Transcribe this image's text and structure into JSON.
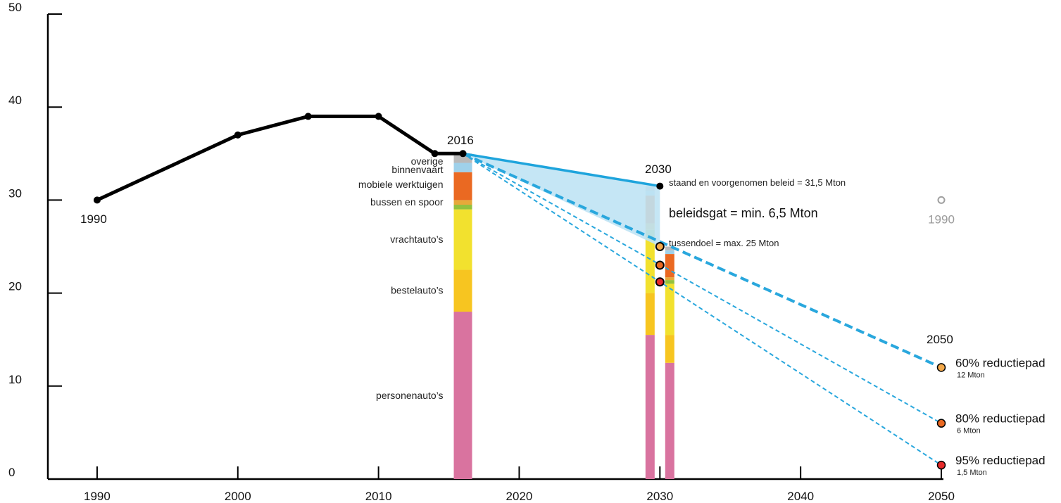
{
  "chart_data": {
    "type": "line",
    "y_ticks": [
      "0",
      "10",
      "20",
      "30",
      "40",
      "50"
    ],
    "x_ticks": [
      "1990",
      "2000",
      "2010",
      "2020",
      "2030",
      "2040",
      "2050"
    ],
    "xlim": [
      1986.5,
      2050
    ],
    "ylim": [
      0,
      50
    ],
    "historical": {
      "x": [
        1990,
        2000,
        2005,
        2010,
        2014,
        2016
      ],
      "y": [
        30,
        37,
        39,
        39,
        35,
        35
      ],
      "color": "#000000"
    },
    "stacked_bars": [
      {
        "x": 2016,
        "segments": [
          {
            "label": "personenauto’s",
            "value": 18,
            "color": "#d9739f"
          },
          {
            "label": "bestelauto’s",
            "value": 4.5,
            "color": "#f7c520"
          },
          {
            "label": "vrachtauto’s",
            "value": 6.5,
            "color": "#f2e12e"
          },
          {
            "label": "bussen en spoor",
            "value": 0.5,
            "color": "#93c13e"
          },
          {
            "label": "",
            "value": 0.5,
            "color": "#e7a93a"
          },
          {
            "label": "mobiele werktuigen",
            "value": 3,
            "color": "#ea6922"
          },
          {
            "label": "binnenvaart",
            "value": 1,
            "color": "#9fd1ea"
          },
          {
            "label": "overige",
            "value": 1,
            "color": "#b9b9b9"
          }
        ]
      },
      {
        "x": 2029.3,
        "segments": [
          {
            "value": 15.5,
            "color": "#d9739f"
          },
          {
            "value": 4.5,
            "color": "#f7c520"
          },
          {
            "value": 6,
            "color": "#f2e12e"
          },
          {
            "value": 0.8,
            "color": "#93c13e"
          },
          {
            "value": 0.7,
            "color": "#e7a93a"
          },
          {
            "value": 3,
            "color": "#ea6922"
          },
          {
            "value": 0.5,
            "color": "#9fd1ea"
          },
          {
            "value": 0.5,
            "color": "#b9b9b9"
          }
        ]
      },
      {
        "x": 2030.7,
        "segments": [
          {
            "value": 12.5,
            "color": "#d9739f"
          },
          {
            "value": 3,
            "color": "#f7c520"
          },
          {
            "value": 5.5,
            "color": "#f2e12e"
          },
          {
            "value": 0.4,
            "color": "#93c13e"
          },
          {
            "value": 0.3,
            "color": "#e7a93a"
          },
          {
            "value": 2.5,
            "color": "#ea6922"
          },
          {
            "value": 0.4,
            "color": "#9fd1ea"
          },
          {
            "value": 0.4,
            "color": "#b9b9b9"
          }
        ]
      }
    ],
    "policy_line": {
      "from": [
        2016,
        35
      ],
      "to": [
        2030,
        31.5
      ],
      "color": "#1ea4dc"
    },
    "reduction_paths": [
      {
        "name": "60% reductiepad",
        "sub": "12 Mton",
        "from": [
          2016,
          35
        ],
        "point2030": [
          2030,
          25
        ],
        "to": [
          2050,
          12
        ],
        "color": "#f4a94a"
      },
      {
        "name": "80% reductiepad",
        "sub": "6 Mton",
        "from": [
          2016,
          35
        ],
        "point2030": [
          2030,
          23
        ],
        "to": [
          2050,
          6
        ],
        "color": "#ea6922"
      },
      {
        "name": "95% reductiepad",
        "sub": "1,5 Mton",
        "from": [
          2016,
          35
        ],
        "point2030": [
          2030,
          21.2
        ],
        "to": [
          2050,
          1.5
        ],
        "color": "#e52a2a"
      }
    ],
    "ghost_1990": {
      "x": 2050,
      "y": 30,
      "label": "1990"
    },
    "annotations": {
      "year_1990": "1990",
      "year_2016": "2016",
      "year_2030": "2030",
      "year_2050": "2050",
      "beleid": "staand en voorgenomen beleid = 31,5 Mton",
      "gap": "beleidsgat = min. 6,5 Mton",
      "tussendoel": "tussendoel = max. 25 Mton"
    }
  }
}
